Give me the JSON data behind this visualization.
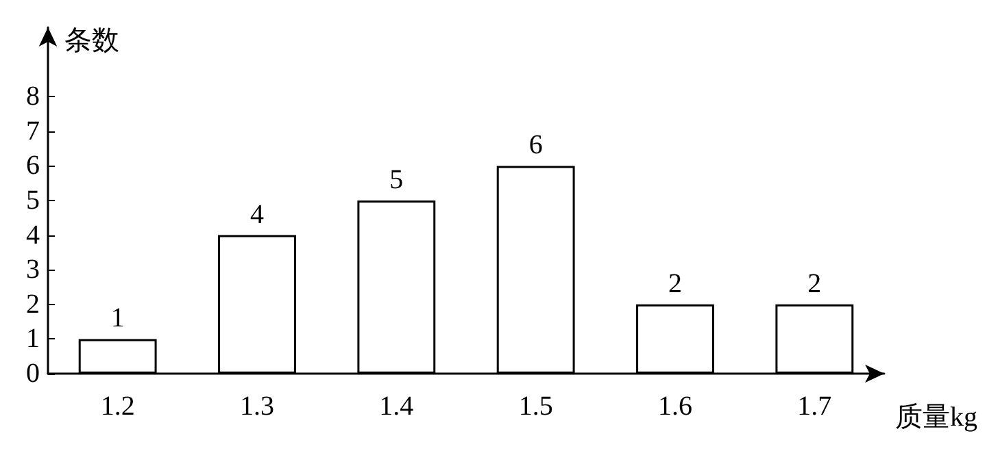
{
  "chart_data": {
    "type": "bar",
    "xlabel": "质量kg",
    "ylabel": "条数",
    "categories": [
      "1.2",
      "1.3",
      "1.4",
      "1.5",
      "1.6",
      "1.7"
    ],
    "series": [
      {
        "color": "#ffffff",
        "values": [
          1,
          4,
          5,
          6,
          2,
          2
        ]
      }
    ],
    "ylim": [
      0,
      10
    ],
    "yticks": [
      0,
      1,
      2,
      3,
      4,
      5,
      6,
      7,
      8
    ],
    "data_labels": true
  }
}
